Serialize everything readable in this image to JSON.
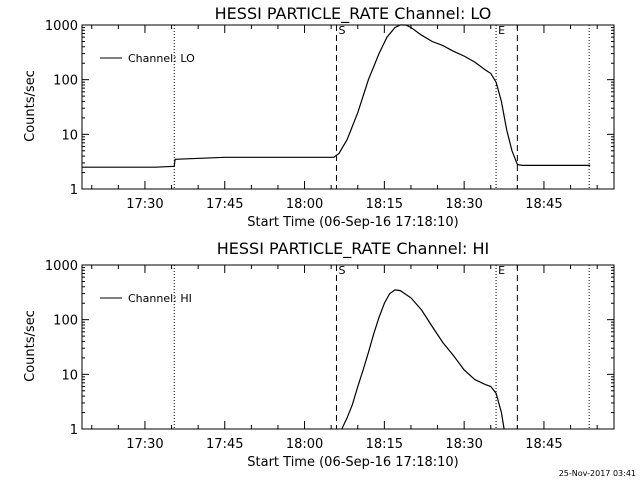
{
  "timestamp": "25-Nov-2017 03:41",
  "chart_data": [
    {
      "type": "line",
      "title": "HESSI PARTICLE_RATE Channel: LO",
      "xlabel": "Start Time (06-Sep-16 17:18:10)",
      "ylabel": "Counts/sec",
      "y_scale": "log",
      "ylim": [
        1,
        1000
      ],
      "xlim": [
        "17:18:10",
        "18:58:10"
      ],
      "x_ticks": [
        "17:30",
        "17:45",
        "18:00",
        "18:15",
        "18:30",
        "18:45"
      ],
      "y_ticks": [
        "1",
        "10",
        "100",
        "1000"
      ],
      "legend_position": "top-left",
      "series": [
        {
          "name": "Channel: LO",
          "x": [
            "17:18:10",
            "17:25:00",
            "17:32:00",
            "17:35:30",
            "17:35:40",
            "17:45:00",
            "17:55:00",
            "18:05:30",
            "18:06:30",
            "18:08:00",
            "18:10:00",
            "18:12:00",
            "18:14:00",
            "18:15:30",
            "18:17:00",
            "18:18:00",
            "18:19:00",
            "18:20:00",
            "18:22:00",
            "18:24:00",
            "18:26:00",
            "18:28:00",
            "18:30:00",
            "18:32:00",
            "18:34:00",
            "18:35:00",
            "18:36:00",
            "18:37:00",
            "18:38:00",
            "18:39:00",
            "18:40:00",
            "18:41:00",
            "18:50:00",
            "18:53:40"
          ],
          "values": [
            2.5,
            2.5,
            2.5,
            2.6,
            3.5,
            3.8,
            3.8,
            3.8,
            4.5,
            8,
            25,
            100,
            300,
            600,
            900,
            1000,
            1000,
            900,
            650,
            500,
            420,
            330,
            270,
            210,
            150,
            130,
            90,
            40,
            12,
            5,
            2.8,
            2.7,
            2.7,
            2.7
          ]
        }
      ],
      "markers": [
        {
          "time": "17:35:30",
          "style": "dotted",
          "label": ""
        },
        {
          "time": "18:06:00",
          "style": "dashed",
          "label": "S"
        },
        {
          "time": "18:36:00",
          "style": "dotted",
          "label": "E"
        },
        {
          "time": "18:40:00",
          "style": "dashed",
          "label": ""
        },
        {
          "time": "18:53:30",
          "style": "dotted",
          "label": ""
        }
      ]
    },
    {
      "type": "line",
      "title": "HESSI PARTICLE_RATE Channel: HI",
      "xlabel": "Start Time (06-Sep-16 17:18:10)",
      "ylabel": "Counts/sec",
      "y_scale": "log",
      "ylim": [
        1,
        1000
      ],
      "xlim": [
        "17:18:10",
        "18:58:10"
      ],
      "x_ticks": [
        "17:30",
        "17:45",
        "18:00",
        "18:15",
        "18:30",
        "18:45"
      ],
      "y_ticks": [
        "1",
        "10",
        "100",
        "1000"
      ],
      "legend_position": "top-left",
      "series": [
        {
          "name": "Channel: HI",
          "x": [
            "18:07:00",
            "18:08:00",
            "18:09:00",
            "18:10:00",
            "18:11:00",
            "18:12:00",
            "18:13:00",
            "18:14:00",
            "18:15:00",
            "18:16:00",
            "18:17:00",
            "18:18:00",
            "18:20:00",
            "18:22:00",
            "18:24:00",
            "18:26:00",
            "18:28:00",
            "18:30:00",
            "18:32:00",
            "18:34:00",
            "18:35:00",
            "18:36:00",
            "18:37:00",
            "18:37:30"
          ],
          "values": [
            1,
            1.6,
            2.8,
            6,
            12,
            25,
            55,
            110,
            200,
            300,
            350,
            340,
            250,
            150,
            75,
            38,
            22,
            12,
            8,
            6.5,
            6,
            4.5,
            2,
            1
          ]
        }
      ],
      "markers": [
        {
          "time": "17:35:30",
          "style": "dotted",
          "label": ""
        },
        {
          "time": "18:06:00",
          "style": "dashed",
          "label": "S"
        },
        {
          "time": "18:36:00",
          "style": "dotted",
          "label": "E"
        },
        {
          "time": "18:40:00",
          "style": "dashed",
          "label": ""
        },
        {
          "time": "18:53:30",
          "style": "dotted",
          "label": ""
        }
      ]
    }
  ]
}
